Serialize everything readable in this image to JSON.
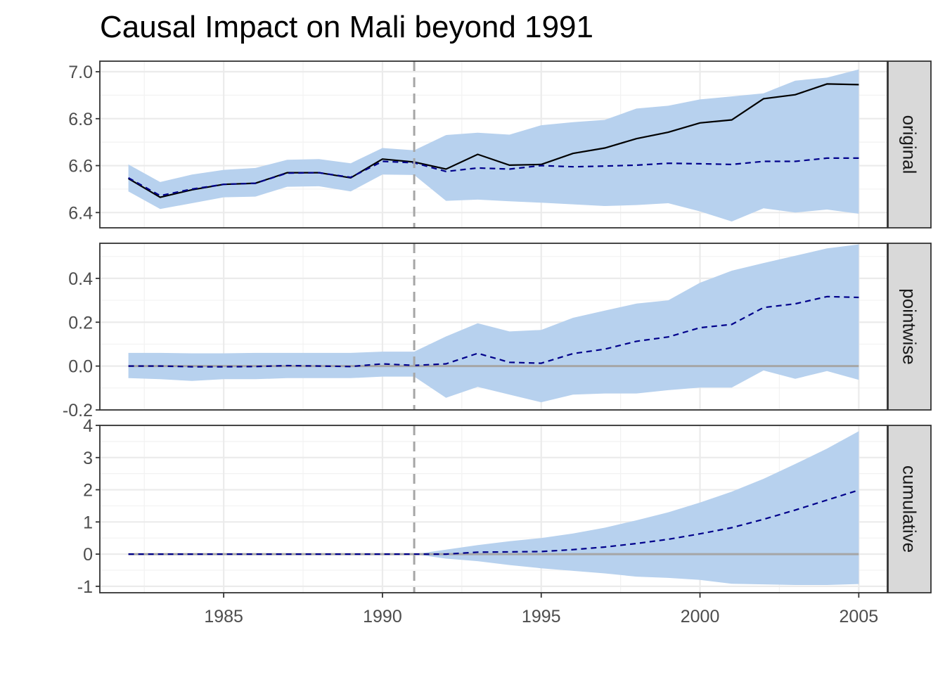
{
  "chart_data": {
    "type": "line",
    "title": "Causal Impact on Mali beyond 1991",
    "xlabel": "",
    "ylabel": "",
    "intervention": 1991,
    "x_ticks": [
      1985,
      1990,
      1995,
      2000,
      2005
    ],
    "xlim": [
      1981.1,
      2005.9
    ],
    "x": [
      1982,
      1983,
      1984,
      1985,
      1986,
      1987,
      1988,
      1989,
      1990,
      1991,
      1992,
      1993,
      1994,
      1995,
      1996,
      1997,
      1998,
      1999,
      2000,
      2001,
      2002,
      2003,
      2004,
      2005
    ],
    "colors": {
      "band": "#b7d1ee",
      "prediction": "#00008b",
      "response": "#000000",
      "intervention_line": "#a6a6a6",
      "zero_line": "#a6a6a6",
      "strip": "#d9d9d9"
    },
    "panels": [
      {
        "name": "original",
        "strip_label": "original",
        "ylim": [
          6.335,
          7.045
        ],
        "y_ticks": [
          "6.4",
          "6.6",
          "6.8",
          "7.0"
        ],
        "y_tick_values": [
          6.4,
          6.6,
          6.8,
          7.0
        ],
        "series": [
          {
            "role": "response",
            "values": [
              6.545,
              6.465,
              6.497,
              6.52,
              6.525,
              6.57,
              6.57,
              6.548,
              6.628,
              6.615,
              6.585,
              6.648,
              6.602,
              6.605,
              6.652,
              6.675,
              6.715,
              6.742,
              6.782,
              6.795,
              6.885,
              6.902,
              6.948,
              6.945
            ]
          },
          {
            "role": "prediction",
            "values": [
              6.548,
              6.472,
              6.5,
              6.52,
              6.525,
              6.568,
              6.57,
              6.55,
              6.618,
              6.612,
              6.575,
              6.59,
              6.585,
              6.6,
              6.595,
              6.598,
              6.602,
              6.61,
              6.608,
              6.605,
              6.618,
              6.618,
              6.632,
              6.632
            ]
          }
        ],
        "band_upper": [
          6.605,
          6.53,
          6.562,
          6.582,
          6.59,
          6.625,
          6.628,
          6.61,
          6.675,
          6.665,
          6.73,
          6.74,
          6.732,
          6.772,
          6.785,
          6.795,
          6.843,
          6.855,
          6.882,
          6.895,
          6.908,
          6.962,
          6.975,
          7.01
        ],
        "band_lower": [
          6.49,
          6.415,
          6.44,
          6.465,
          6.468,
          6.51,
          6.512,
          6.49,
          6.562,
          6.56,
          6.45,
          6.455,
          6.448,
          6.442,
          6.435,
          6.428,
          6.432,
          6.44,
          6.405,
          6.362,
          6.418,
          6.4,
          6.413,
          6.395
        ]
      },
      {
        "name": "pointwise",
        "strip_label": "pointwise",
        "ylim": [
          -0.2,
          0.56
        ],
        "y_ticks": [
          "-0.2",
          "0.0",
          "0.2",
          "0.4"
        ],
        "y_tick_values": [
          -0.2,
          0.0,
          0.2,
          0.4
        ],
        "series": [
          {
            "role": "prediction",
            "values": [
              0.0,
              0.0,
              -0.003,
              -0.003,
              -0.002,
              0.002,
              0.0,
              -0.002,
              0.01,
              0.003,
              0.01,
              0.058,
              0.017,
              0.013,
              0.057,
              0.077,
              0.113,
              0.133,
              0.175,
              0.19,
              0.267,
              0.284,
              0.317,
              0.313
            ]
          }
        ],
        "band_upper": [
          0.06,
          0.06,
          0.058,
          0.058,
          0.06,
          0.06,
          0.06,
          0.06,
          0.066,
          0.066,
          0.135,
          0.195,
          0.158,
          0.165,
          0.22,
          0.253,
          0.285,
          0.3,
          0.38,
          0.435,
          0.47,
          0.503,
          0.537,
          0.555
        ],
        "band_lower": [
          -0.055,
          -0.06,
          -0.068,
          -0.06,
          -0.06,
          -0.055,
          -0.055,
          -0.055,
          -0.048,
          -0.048,
          -0.145,
          -0.095,
          -0.13,
          -0.165,
          -0.13,
          -0.125,
          -0.125,
          -0.11,
          -0.098,
          -0.098,
          -0.02,
          -0.058,
          -0.023,
          -0.063
        ]
      },
      {
        "name": "cumulative",
        "strip_label": "cumulative",
        "ylim": [
          -1.2,
          4.0
        ],
        "y_ticks": [
          "-1",
          "0",
          "1",
          "2",
          "3",
          "4"
        ],
        "y_tick_values": [
          -1,
          0,
          1,
          2,
          3,
          4
        ],
        "series": [
          {
            "role": "prediction",
            "values": [
              0.0,
              0.0,
              0.0,
              0.0,
              0.0,
              0.0,
              0.0,
              0.0,
              0.0,
              0.0,
              0.0,
              0.06,
              0.07,
              0.08,
              0.14,
              0.22,
              0.33,
              0.46,
              0.63,
              0.82,
              1.08,
              1.37,
              1.68,
              1.99
            ]
          }
        ],
        "band_upper": [
          0.0,
          0.0,
          0.0,
          0.0,
          0.0,
          0.0,
          0.0,
          0.0,
          0.0,
          0.0,
          0.14,
          0.28,
          0.4,
          0.5,
          0.64,
          0.82,
          1.05,
          1.3,
          1.6,
          1.94,
          2.34,
          2.8,
          3.28,
          3.82
        ],
        "band_lower": [
          0.0,
          0.0,
          0.0,
          0.0,
          0.0,
          0.0,
          0.0,
          0.0,
          0.0,
          0.0,
          -0.14,
          -0.22,
          -0.34,
          -0.44,
          -0.52,
          -0.6,
          -0.7,
          -0.74,
          -0.8,
          -0.92,
          -0.94,
          -0.96,
          -0.96,
          -0.93
        ]
      }
    ]
  }
}
